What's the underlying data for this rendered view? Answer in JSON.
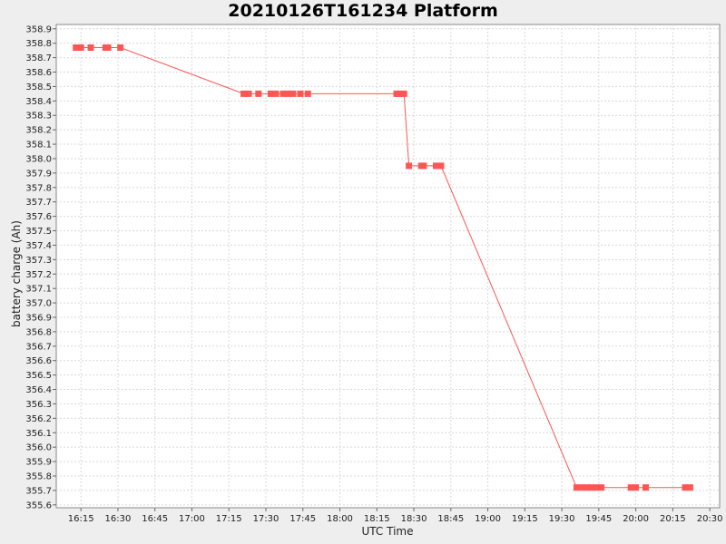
{
  "chart_data": {
    "type": "line",
    "title": "20210126T161234 Platform",
    "xlabel": "UTC Time",
    "ylabel": "battery charge (Ah)",
    "x_tick_labels": [
      "16:15",
      "16:30",
      "16:45",
      "17:00",
      "17:15",
      "17:30",
      "17:45",
      "18:00",
      "18:15",
      "18:30",
      "18:45",
      "19:00",
      "19:15",
      "19:30",
      "19:45",
      "20:00",
      "20:15",
      "20:30"
    ],
    "y_tick_labels": [
      "355.6",
      "355.7",
      "355.8",
      "355.9",
      "356.0",
      "356.1",
      "356.2",
      "356.3",
      "356.4",
      "356.5",
      "356.6",
      "356.7",
      "356.8",
      "356.9",
      "357.0",
      "357.1",
      "357.2",
      "357.3",
      "357.4",
      "357.5",
      "357.6",
      "357.7",
      "357.8",
      "357.9",
      "358.0",
      "358.1",
      "358.2",
      "358.3",
      "358.4",
      "358.5",
      "358.6",
      "358.7",
      "358.8",
      "358.9"
    ],
    "xlim": [
      "16:05",
      "20:34"
    ],
    "ylim": [
      355.58,
      358.93
    ],
    "grid": true,
    "series": [
      {
        "color": "#ff5555",
        "points": [
          {
            "x": "16:13",
            "y": 358.77
          },
          {
            "x": "16:15",
            "y": 358.77
          },
          {
            "x": "16:19",
            "y": 358.77
          },
          {
            "x": "16:25",
            "y": 358.77
          },
          {
            "x": "16:26",
            "y": 358.77
          },
          {
            "x": "16:31",
            "y": 358.77
          },
          {
            "x": "17:21",
            "y": 358.45
          },
          {
            "x": "17:23",
            "y": 358.45
          },
          {
            "x": "17:27",
            "y": 358.45
          },
          {
            "x": "17:32",
            "y": 358.45
          },
          {
            "x": "17:34",
            "y": 358.45
          },
          {
            "x": "17:37",
            "y": 358.45
          },
          {
            "x": "17:39",
            "y": 358.45
          },
          {
            "x": "17:41",
            "y": 358.45
          },
          {
            "x": "17:44",
            "y": 358.45
          },
          {
            "x": "17:47",
            "y": 358.45
          },
          {
            "x": "18:23",
            "y": 358.45
          },
          {
            "x": "18:24",
            "y": 358.45
          },
          {
            "x": "18:26",
            "y": 358.45
          },
          {
            "x": "18:28",
            "y": 357.95
          },
          {
            "x": "18:33",
            "y": 357.95
          },
          {
            "x": "18:34",
            "y": 357.95
          },
          {
            "x": "18:39",
            "y": 357.95
          },
          {
            "x": "18:41",
            "y": 357.95
          },
          {
            "x": "19:36",
            "y": 355.72
          },
          {
            "x": "19:38",
            "y": 355.72
          },
          {
            "x": "19:40",
            "y": 355.72
          },
          {
            "x": "19:42",
            "y": 355.72
          },
          {
            "x": "19:44",
            "y": 355.72
          },
          {
            "x": "19:46",
            "y": 355.72
          },
          {
            "x": "19:58",
            "y": 355.72
          },
          {
            "x": "20:00",
            "y": 355.72
          },
          {
            "x": "20:04",
            "y": 355.72
          },
          {
            "x": "20:20",
            "y": 355.72
          },
          {
            "x": "20:22",
            "y": 355.72
          }
        ]
      }
    ]
  }
}
